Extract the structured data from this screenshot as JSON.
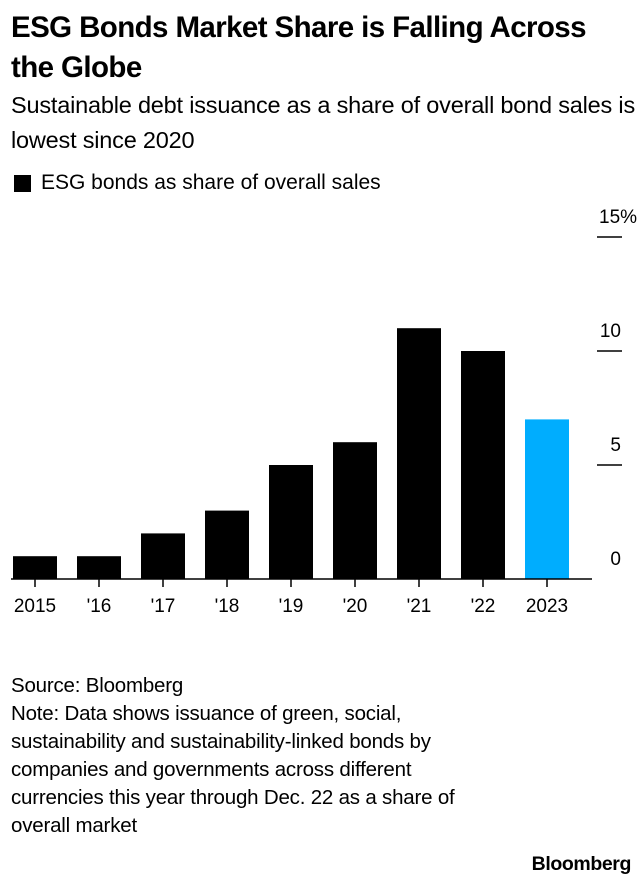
{
  "header": {
    "title": "ESG Bonds Market Share is Falling Across the Globe",
    "subtitle": "Sustainable debt issuance as a share of overall bond sales is lowest since 2020"
  },
  "legend": {
    "label": "ESG bonds as share of overall sales",
    "color": "#000000"
  },
  "chart_data": {
    "type": "bar",
    "title": "ESG Bonds Market Share is Falling Across the Globe",
    "subtitle": "Sustainable debt issuance as a share of overall bond sales is lowest since 2020",
    "categories": [
      "2015",
      "'16",
      "'17",
      "'18",
      "'19",
      "'20",
      "'21",
      "'22",
      "2023"
    ],
    "series": [
      {
        "name": "ESG bonds as share of overall sales",
        "values": [
          1,
          1,
          2,
          3,
          5,
          6,
          11,
          10,
          7
        ],
        "colors": [
          "#000000",
          "#000000",
          "#000000",
          "#000000",
          "#000000",
          "#000000",
          "#000000",
          "#000000",
          "#00adfe"
        ]
      }
    ],
    "highlight_color": "#00adfe",
    "xlabel": "",
    "ylabel": "",
    "ylim": [
      0,
      15
    ],
    "yticks": [
      0,
      5,
      10,
      15
    ],
    "ytick_labels": [
      "0",
      "5",
      "10",
      "15%"
    ],
    "y_axis_side": "right",
    "grid": false,
    "legend_position": "top-left"
  },
  "footer": {
    "source": "Source: Bloomberg",
    "note": "Note: Data shows issuance of green, social, sustainability and sustainability-linked bonds by companies and governments across different currencies this year through Dec. 22 as a share of overall market"
  },
  "brand": {
    "logo_text": "Bloomberg"
  }
}
